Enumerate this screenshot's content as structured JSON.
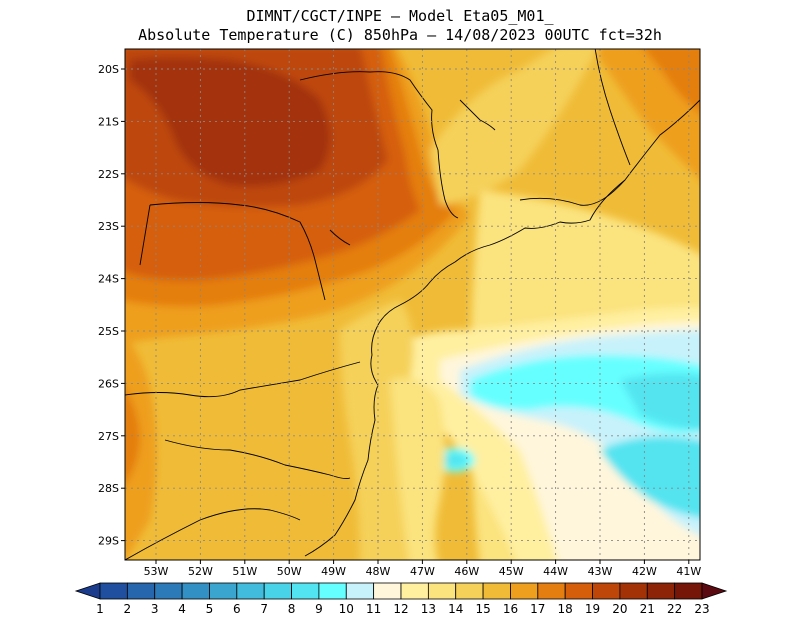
{
  "title": {
    "line1": "DIMNT/CGCT/INPE –  Model Eta05_M01_",
    "line2": "Absolute Temperature (C) 850hPa –  14/08/2023 00UTC fct=32h"
  },
  "map": {
    "lat_labels": [
      "20S",
      "21S",
      "22S",
      "23S",
      "24S",
      "25S",
      "26S",
      "27S",
      "28S",
      "29S"
    ],
    "lon_labels": [
      "53W",
      "52W",
      "51W",
      "50W",
      "49W",
      "48W",
      "47W",
      "46W",
      "45W",
      "44W",
      "43W",
      "42W",
      "41W"
    ]
  },
  "colorbar": {
    "labels": [
      "1",
      "2",
      "3",
      "4",
      "5",
      "6",
      "7",
      "8",
      "9",
      "10",
      "11",
      "12",
      "13",
      "14",
      "15",
      "16",
      "17",
      "18",
      "19",
      "20",
      "21",
      "22",
      "23"
    ],
    "colors": [
      "#1b3c8c",
      "#1f4f9e",
      "#2666ad",
      "#2d7ab9",
      "#3390c4",
      "#3aa6cf",
      "#41bcdc",
      "#49d3e8",
      "#52e4f0",
      "#66ffff",
      "#c8f2fb",
      "#fff6dc",
      "#fff0a0",
      "#fbe37e",
      "#f5d15a",
      "#f0bc38",
      "#ee9f1e",
      "#e47e10",
      "#d55e0a",
      "#bd4608",
      "#a33307",
      "#8d2407",
      "#751608",
      "#5a0a10"
    ]
  }
}
